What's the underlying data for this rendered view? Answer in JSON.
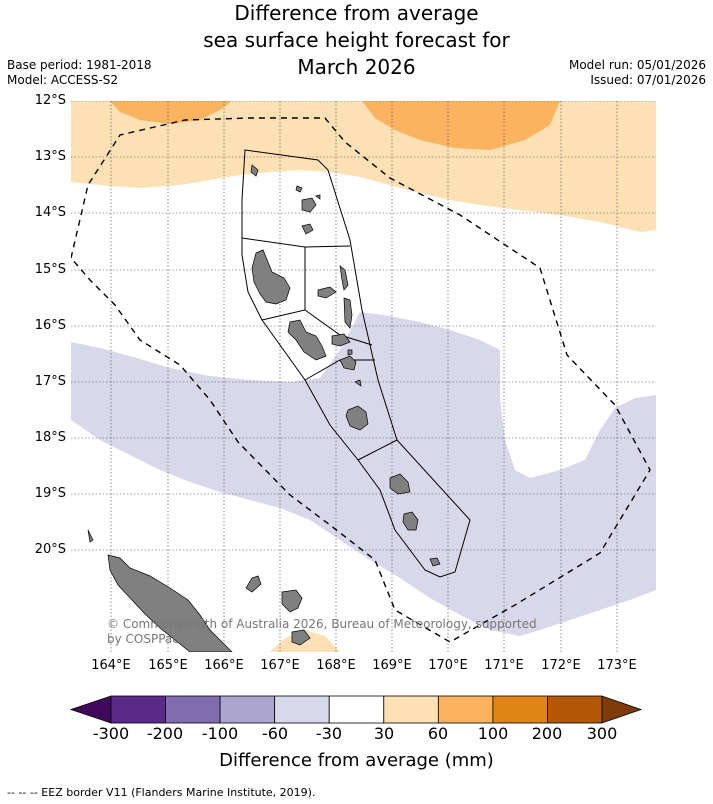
{
  "title_lines": [
    "Difference from average",
    "sea surface height forecast for",
    "March 2026"
  ],
  "meta": {
    "base_period": "Base period: 1981-2018",
    "model": "Model: ACCESS-S2",
    "model_run": "Model run: 05/01/2026",
    "issued": "Issued: 07/01/2026"
  },
  "axes": {
    "lat_labels": [
      "12°S",
      "13°S",
      "14°S",
      "15°S",
      "16°S",
      "17°S",
      "18°S",
      "19°S",
      "20°S"
    ],
    "lon_labels": [
      "164°E",
      "165°E",
      "166°E",
      "167°E",
      "168°E",
      "169°E",
      "170°E",
      "171°E",
      "172°E",
      "173°E"
    ]
  },
  "colorbar": {
    "title": "Difference from average (mm)",
    "ticks": [
      "-300",
      "-200",
      "-100",
      "-60",
      "-30",
      "30",
      "60",
      "100",
      "200",
      "300"
    ],
    "colors": [
      "#3f0a5b",
      "#5a2a8a",
      "#7f6db0",
      "#aca6cf",
      "#d8d8ea",
      "#ffffff",
      "#fde0b4",
      "#fbb35f",
      "#e08416",
      "#b35806",
      "#7f3b08"
    ]
  },
  "copyright": {
    "line1": "© Commonwealth of Australia 2026, Bureau of Meteorology, supported",
    "line2": "by COSPPac"
  },
  "footnote": "--  --  -- EEZ border V11 (Flanders Marine Institute, 2019).",
  "layers": {
    "positive_anomaly_light": "#fde0b4",
    "positive_anomaly_medium": "#fbb35f",
    "negative_anomaly_light": "#d8d8ea",
    "land": "#808080"
  }
}
